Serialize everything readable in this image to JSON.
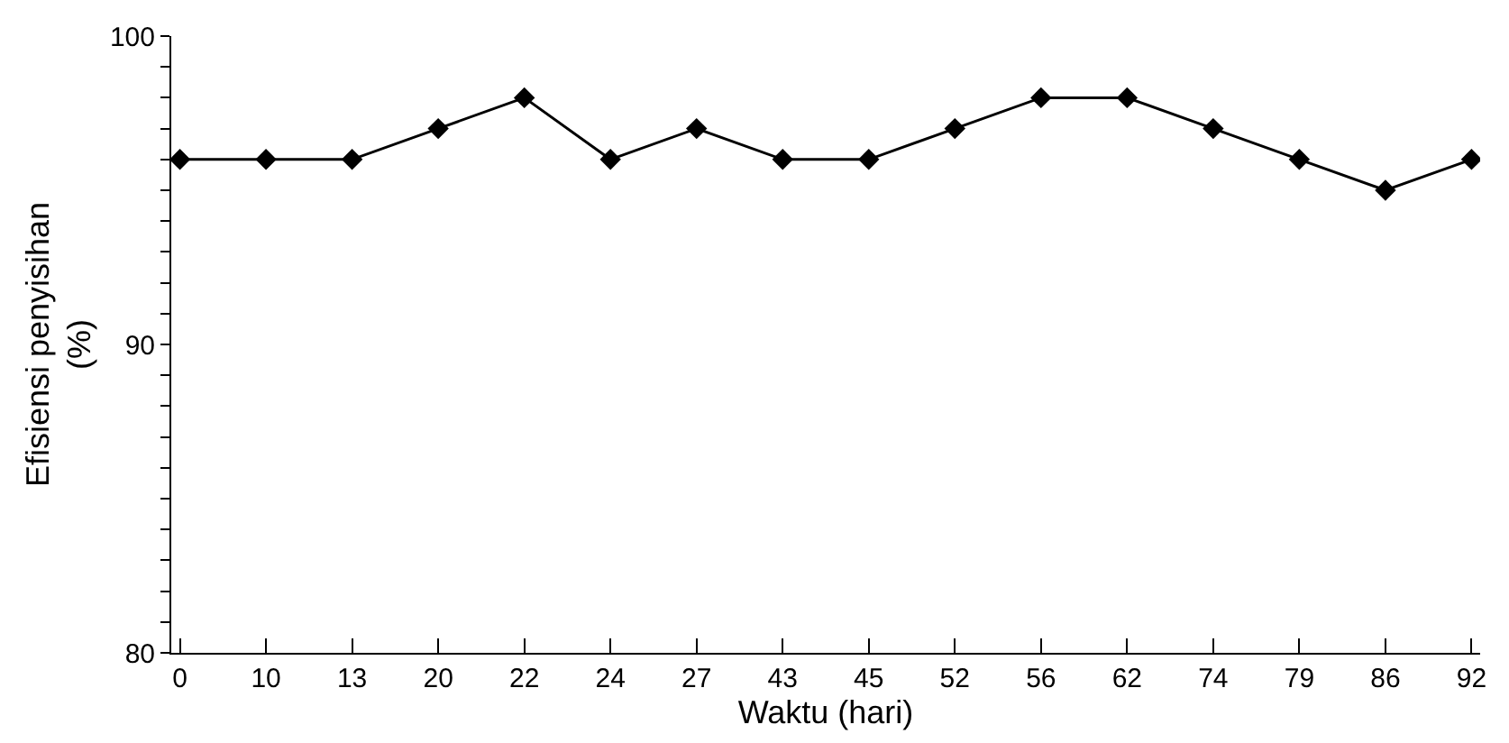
{
  "chart_data": {
    "type": "line",
    "xlabel": "Waktu (hari)",
    "ylabel": "Efisiensi penyisihan\n(%)",
    "categories": [
      "0",
      "10",
      "13",
      "20",
      "22",
      "24",
      "27",
      "43",
      "45",
      "52",
      "56",
      "62",
      "74",
      "79",
      "86",
      "92"
    ],
    "series": [
      {
        "color": "#000000",
        "values": [
          96,
          96,
          96,
          97,
          98,
          96,
          97,
          96,
          96,
          97,
          98,
          98,
          97,
          96,
          95,
          96
        ]
      }
    ],
    "ylim": [
      80,
      100
    ],
    "yticks": [
      80,
      {
        "value": 81,
        "label": null
      },
      {
        "value": 82,
        "label": null
      },
      {
        "value": 83,
        "label": null
      },
      {
        "value": 84,
        "label": null
      },
      {
        "value": 85,
        "label": null
      },
      {
        "value": 86,
        "label": null
      },
      {
        "value": 87,
        "label": null
      },
      {
        "value": 88,
        "label": null
      },
      {
        "value": 89,
        "label": null
      },
      90,
      {
        "value": 91,
        "label": null
      },
      {
        "value": 92,
        "label": null
      },
      {
        "value": 93,
        "label": null
      },
      {
        "value": 94,
        "label": null
      },
      {
        "value": 95,
        "label": null
      },
      {
        "value": 96,
        "label": null
      },
      {
        "value": 97,
        "label": null
      },
      {
        "value": 98,
        "label": null
      },
      {
        "value": 99,
        "label": null
      },
      100
    ],
    "marker": "diamond",
    "line_style": "solid"
  }
}
